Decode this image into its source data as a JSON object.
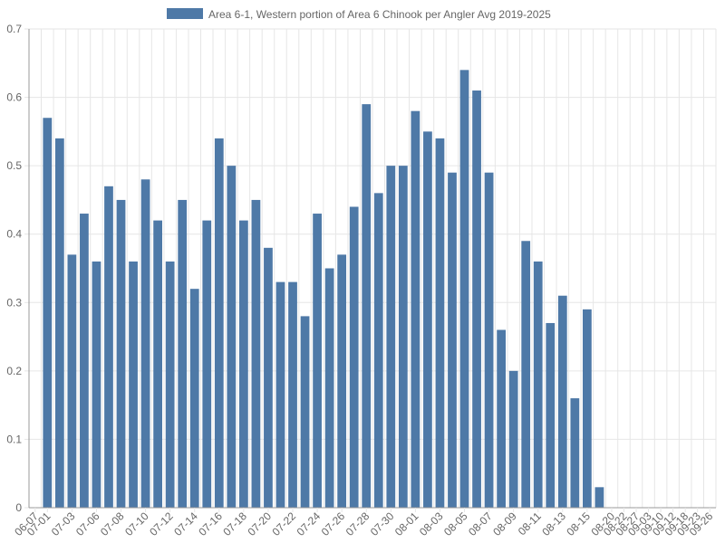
{
  "chart_data": {
    "type": "bar",
    "title": "",
    "xlabel": "",
    "ylabel": "",
    "ylim": [
      0,
      0.7
    ],
    "yticks": [
      "0",
      "0.1",
      "0.2",
      "0.3",
      "0.4",
      "0.5",
      "0.6",
      "0.7"
    ],
    "grid": true,
    "legend_position": "top",
    "colors": {
      "bar": "#4e79a7",
      "grid": "#e6e6e6",
      "axis": "#999999",
      "text": "#666666"
    },
    "categories": [
      "06-07",
      "07-01",
      "07-02",
      "07-03",
      "07-05",
      "07-06",
      "07-07",
      "07-08",
      "07-09",
      "07-10",
      "07-11",
      "07-12",
      "07-13",
      "07-14",
      "07-15",
      "07-16",
      "07-17",
      "07-18",
      "07-19",
      "07-20",
      "07-21",
      "07-22",
      "07-23",
      "07-24",
      "07-25",
      "07-26",
      "07-27",
      "07-28",
      "07-29",
      "07-30",
      "07-31",
      "08-01",
      "08-02",
      "08-03",
      "08-04",
      "08-05",
      "08-06",
      "08-07",
      "08-08",
      "08-09",
      "08-10",
      "08-11",
      "08-12",
      "08-13",
      "08-14",
      "08-15",
      "08-16",
      "08-20",
      "08-22",
      "08-27",
      "09-03",
      "09-10",
      "09-12",
      "09-18",
      "09-23",
      "09-26"
    ],
    "tick_labels": [
      "06-07",
      "07-01",
      "07-03",
      "07-06",
      "07-08",
      "07-10",
      "07-12",
      "07-14",
      "07-16",
      "07-18",
      "07-20",
      "07-22",
      "07-24",
      "07-26",
      "07-28",
      "07-30",
      "08-01",
      "08-03",
      "08-05",
      "08-07",
      "08-09",
      "08-11",
      "08-13",
      "08-15",
      "08-20",
      "08-22",
      "08-27",
      "09-03",
      "09-10",
      "09-12",
      "09-18",
      "09-23",
      "09-26"
    ],
    "series": [
      {
        "name": "Area 6-1, Western portion of Area 6 Chinook per Angler Avg 2019-2025",
        "values": [
          null,
          0.57,
          0.54,
          0.37,
          0.43,
          0.36,
          0.47,
          0.45,
          0.36,
          0.48,
          0.42,
          0.36,
          0.45,
          0.32,
          0.42,
          0.54,
          0.5,
          0.42,
          0.45,
          0.38,
          0.33,
          0.33,
          0.28,
          0.43,
          0.35,
          0.37,
          0.44,
          0.59,
          0.46,
          0.5,
          0.5,
          0.58,
          0.55,
          0.54,
          0.49,
          0.64,
          0.61,
          0.49,
          0.26,
          0.2,
          0.39,
          0.36,
          0.27,
          0.31,
          0.16,
          0.29,
          0.03,
          null,
          null,
          null,
          null,
          null,
          null,
          null,
          null,
          null
        ]
      }
    ]
  }
}
